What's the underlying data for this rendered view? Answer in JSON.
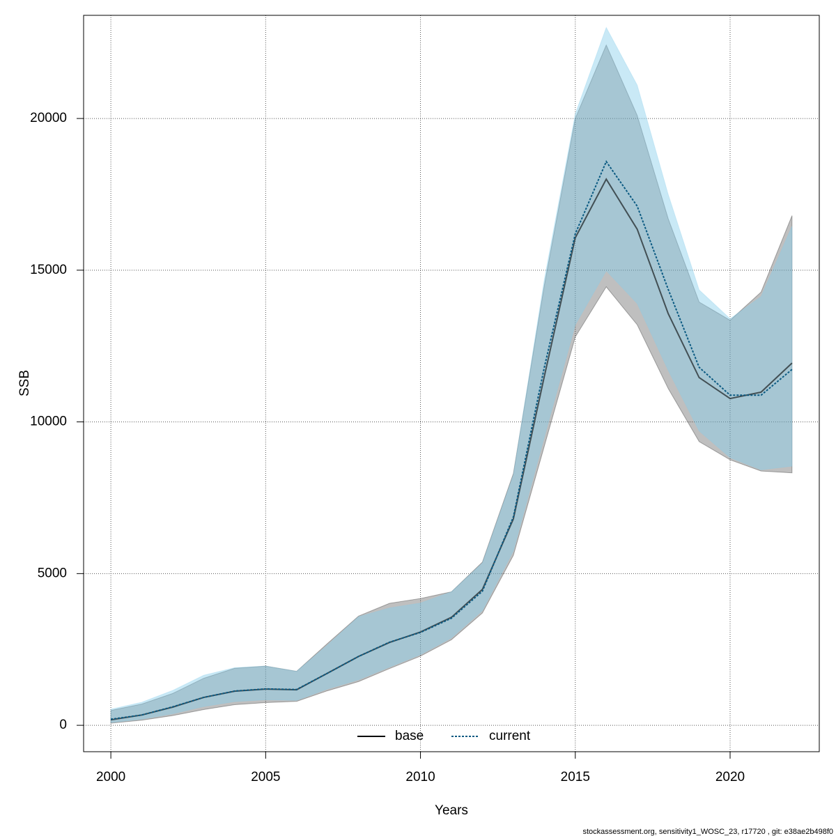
{
  "chart_data": {
    "type": "line",
    "x_label": "Years",
    "y_label": "SSB",
    "x": [
      2000,
      2001,
      2002,
      2003,
      2004,
      2005,
      2006,
      2007,
      2008,
      2009,
      2010,
      2011,
      2012,
      2013,
      2014,
      2015,
      2016,
      2017,
      2018,
      2019,
      2020,
      2021,
      2022
    ],
    "series": [
      {
        "name": "base",
        "color": "#000000",
        "band_color": "#000000",
        "dash": false,
        "values": [
          180,
          340,
          600,
          920,
          1125,
          1195,
          1170,
          1720,
          2270,
          2730,
          3075,
          3560,
          4480,
          6800,
          11500,
          16070,
          18000,
          16350,
          13570,
          11460,
          10770,
          10980,
          11940
        ],
        "lower": [
          70,
          170,
          320,
          520,
          680,
          750,
          790,
          1140,
          1440,
          1870,
          2280,
          2820,
          3700,
          5600,
          9200,
          12800,
          14450,
          13200,
          11100,
          9350,
          8750,
          8380,
          8320
        ],
        "upper": [
          490,
          700,
          1050,
          1550,
          1880,
          1950,
          1780,
          2700,
          3600,
          4020,
          4180,
          4400,
          5380,
          8300,
          14500,
          20000,
          22420,
          20100,
          16700,
          13950,
          13350,
          14280,
          16800
        ]
      },
      {
        "name": "current",
        "color": "#0b5a82",
        "band_color": "#87ceeb",
        "dash": true,
        "values": [
          200,
          340,
          610,
          920,
          1130,
          1200,
          1180,
          1720,
          2270,
          2740,
          3060,
          3530,
          4420,
          6870,
          11800,
          16200,
          18580,
          17110,
          14370,
          11800,
          10880,
          10880,
          11730
        ],
        "lower": [
          90,
          200,
          380,
          620,
          780,
          840,
          820,
          1200,
          1500,
          1920,
          2330,
          2880,
          3780,
          5750,
          9500,
          13200,
          14980,
          13900,
          11700,
          9700,
          8820,
          8420,
          8540
        ],
        "upper": [
          530,
          760,
          1150,
          1650,
          1900,
          1950,
          1780,
          2650,
          3580,
          3870,
          4030,
          4400,
          5350,
          8250,
          14700,
          20150,
          23000,
          21100,
          17500,
          14350,
          13400,
          14130,
          16450
        ]
      }
    ],
    "xlim": [
      1999.12,
      2022.88
    ],
    "xticks": [
      2000,
      2005,
      2010,
      2015,
      2020
    ],
    "ylim": [
      -870,
      23400
    ],
    "yticks": [
      0,
      5000,
      10000,
      15000,
      20000
    ],
    "grid": true,
    "legend": "bottom",
    "footnote": "stockassessment.org, sensitivity1_WOSC_23, r17720 , git: e38ae2b498f0"
  }
}
